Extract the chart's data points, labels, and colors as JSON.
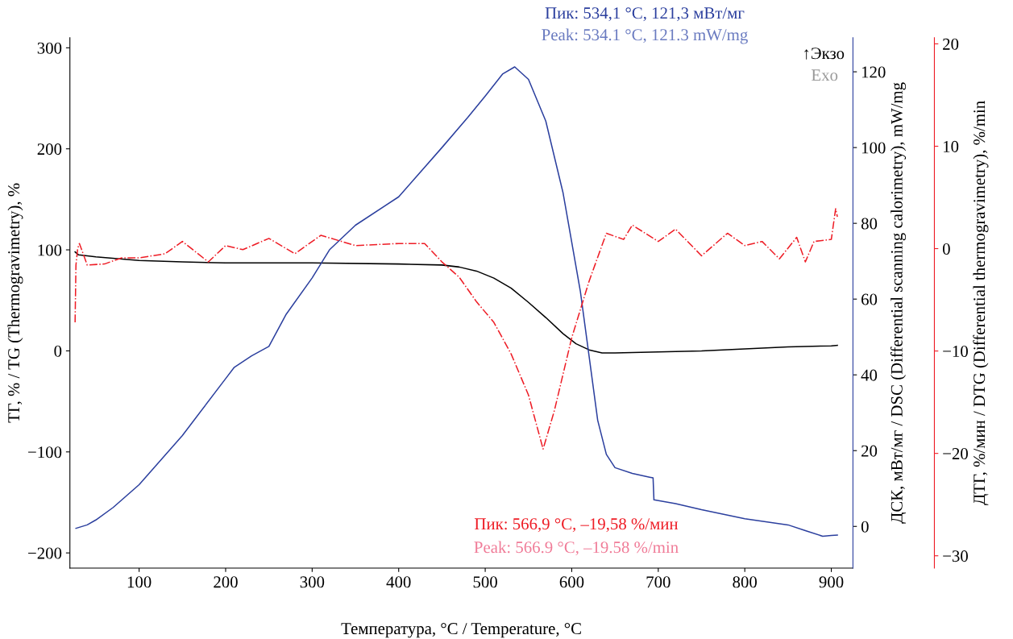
{
  "chart_data": {
    "type": "line",
    "xlabel": "Температура, °C / Temperature, °C",
    "ylabel": "ТГ, % / TG (Thermogravimetry), %",
    "y2label": "ДСК, мВт/мг / DSC (Differential scanning calorimetry), mW/mg",
    "y3label": "ДТГ, %/мин / DTG (Differential thermogravimetry), %/min",
    "xlim": [
      20,
      925
    ],
    "xticks": [
      100,
      200,
      300,
      400,
      500,
      600,
      700,
      800,
      900
    ],
    "ylim": [
      -215,
      310
    ],
    "yticks": [
      -200,
      -100,
      0,
      100,
      200,
      300
    ],
    "y2lim": [
      -11,
      129
    ],
    "y2ticks": [
      0,
      20,
      40,
      60,
      80,
      100,
      120
    ],
    "y3lim": [
      -31.2,
      20.6
    ],
    "y3ticks": [
      -30,
      -20,
      -10,
      0,
      10,
      20
    ],
    "grid": false,
    "legend": false,
    "annotations": [
      "Пик: 534,1 °C, 121,3 мВт/мг",
      "Peak: 534.1 °C, 121.3 mW/mg",
      "↑Экзо",
      "Exo",
      "Пик: 566,9 °C, –19,58 %/мин",
      "Peak: 566.9 °C, –19.58 %/min"
    ],
    "series": [
      {
        "color": "#000000",
        "line_style": "solid",
        "x": [
          26,
          30,
          50,
          100,
          150,
          200,
          300,
          400,
          450,
          470,
          490,
          510,
          530,
          550,
          570,
          590,
          605,
          620,
          635,
          650,
          700,
          750,
          800,
          850,
          900,
          907
        ],
        "values": [
          98,
          95,
          93,
          89.5,
          88,
          87,
          87,
          86,
          85,
          83,
          79,
          72,
          62,
          48,
          33,
          17,
          7,
          1,
          -2,
          -2,
          -1,
          0,
          2,
          4,
          5,
          5.5
        ]
      },
      {
        "color": "#2b3f9e",
        "line_style": "solid",
        "axis": "y2",
        "x": [
          27,
          40,
          50,
          70,
          100,
          150,
          200,
          210,
          230,
          250,
          270,
          300,
          320,
          350,
          400,
          450,
          480,
          500,
          520,
          534.1,
          550,
          570,
          590,
          600,
          610,
          620,
          630,
          640,
          650,
          670,
          690,
          694,
          695,
          720,
          750,
          800,
          850,
          870,
          890,
          900,
          907
        ],
        "values": [
          -0.5,
          0.4,
          1.7,
          5,
          11,
          24,
          39,
          42,
          45,
          47.5,
          56,
          65.6,
          73,
          79.5,
          87,
          100,
          108,
          113.6,
          119.4,
          121.3,
          118,
          107,
          88,
          75,
          62,
          45,
          28,
          19,
          15.5,
          14,
          13,
          12.8,
          7,
          6,
          4.4,
          2,
          0.4,
          -1.1,
          -2.6,
          -2.4,
          -2.3
        ]
      },
      {
        "color": "#ee1c25",
        "line_style": "dashed",
        "axis": "y3",
        "x": [
          26,
          27,
          29,
          31,
          40,
          60,
          80,
          100,
          130,
          150,
          180,
          200,
          220,
          250,
          280,
          310,
          350,
          400,
          430,
          450,
          470,
          490,
          510,
          530,
          550,
          566.9,
          580,
          600,
          620,
          640,
          660,
          670,
          700,
          720,
          750,
          780,
          800,
          820,
          840,
          860,
          870,
          880,
          900,
          905,
          907
        ],
        "values": [
          -7.2,
          -1.6,
          0,
          0.5,
          -1.6,
          -1.5,
          -0.9,
          -0.9,
          -0.5,
          0.7,
          -1.3,
          0.3,
          -0.1,
          1,
          -0.5,
          1.3,
          0.3,
          0.5,
          0.5,
          -1.3,
          -2.8,
          -5.2,
          -7.2,
          -10.3,
          -14.3,
          -19.58,
          -15.8,
          -8.7,
          -3.2,
          1.5,
          0.9,
          2.3,
          0.7,
          1.9,
          -0.7,
          1.5,
          0.3,
          0.7,
          -1,
          1.1,
          -1.3,
          0.7,
          0.9,
          3.9,
          3.1
        ]
      }
    ]
  }
}
